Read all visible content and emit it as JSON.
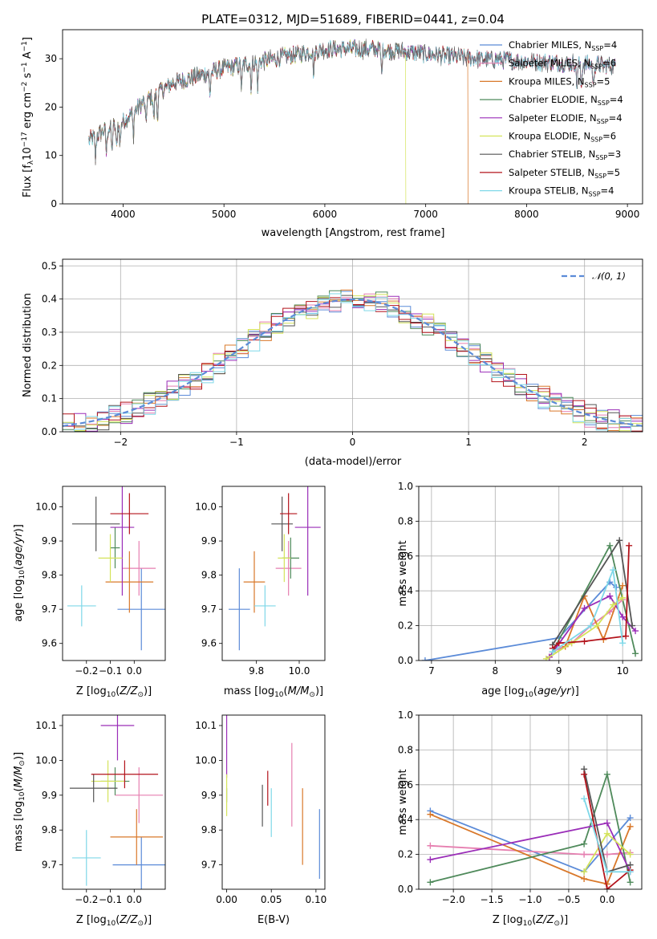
{
  "figure": {
    "title": "PLATE=0312, MJD=51689, FIBERID=0441, z=0.04",
    "models": [
      {
        "name": "Chabrier MILES",
        "nssp": "4",
        "color": "#5b8bd8"
      },
      {
        "name": "Salpeter MILES",
        "nssp": "6",
        "color": "#e67fb0"
      },
      {
        "name": "Kroupa MILES",
        "nssp": "5",
        "color": "#d9782a"
      },
      {
        "name": "Chabrier ELODIE",
        "nssp": "4",
        "color": "#4f8a5b"
      },
      {
        "name": "Salpeter ELODIE",
        "nssp": "4",
        "color": "#9a2db8"
      },
      {
        "name": "Kroupa ELODIE",
        "nssp": "6",
        "color": "#d4e35a"
      },
      {
        "name": "Chabrier STELIB",
        "nssp": "3",
        "color": "#555555"
      },
      {
        "name": "Salpeter STELIB",
        "nssp": "5",
        "color": "#b3131b"
      },
      {
        "name": "Kroupa STELIB",
        "nssp": "4",
        "color": "#7fd8e8"
      }
    ]
  },
  "chart_data": [
    {
      "id": "spectrum",
      "type": "line",
      "title": "PLATE=0312, MJD=51689, FIBERID=0441, z=0.04",
      "xlabel": "wavelength [Angstrom, rest frame]",
      "ylabel_main": "Flux [f",
      "ylabel_parts": {
        "lambda": "λ",
        "scale": "10",
        "scale_exp": "−17",
        "unit1": " erg cm",
        "exp1": "−2",
        "unit2": " s",
        "exp2": "−1",
        "unit3": " A",
        "exp3": "−1",
        "close": "]"
      },
      "xlim": [
        3400,
        9150
      ],
      "ylim": [
        0,
        36
      ],
      "xticks": [
        4000,
        5000,
        6000,
        7000,
        8000,
        9000
      ],
      "yticks": [
        0,
        10,
        20,
        30
      ],
      "continuum": {
        "x": [
          3650,
          3800,
          4000,
          4200,
          4500,
          5000,
          5500,
          6000,
          6500,
          7000,
          7500,
          8000,
          8500,
          8900
        ],
        "y": [
          13,
          15,
          17,
          21,
          25,
          28,
          30,
          32,
          32,
          31,
          30,
          29.5,
          29,
          28.5
        ]
      },
      "model_dropouts": [
        {
          "model": "Kroupa ELODIE",
          "x": 6800
        },
        {
          "model": "Kroupa MILES",
          "x": 7420
        }
      ],
      "legend_position": "upper-right"
    },
    {
      "id": "residual-hist",
      "type": "histogram",
      "xlabel": "(data-model)/error",
      "ylabel": "Normed distribution",
      "xlim": [
        -2.5,
        2.5
      ],
      "ylim": [
        0,
        0.52
      ],
      "xticks": [
        -2,
        -1,
        0,
        1,
        2
      ],
      "yticks": [
        0,
        0.1,
        0.2,
        0.3,
        0.4,
        0.5
      ],
      "bin_width": 0.1,
      "reference_curve": {
        "label": "𝒩(0, 1)",
        "color": "#5b8bd8",
        "mean": 0,
        "sigma": 1
      },
      "grid": true,
      "legend_position": "upper-right"
    },
    {
      "id": "age-vs-z",
      "type": "errorbar",
      "xlabel": "Z [log10(Z/Z⊙)]",
      "ylabel": "age  [log10(age/yr)]",
      "xlim": [
        -0.3,
        0.13
      ],
      "ylim": [
        9.55,
        10.06
      ],
      "xticks": [
        -0.2,
        -0.1,
        0.0
      ],
      "yticks": [
        9.6,
        9.7,
        9.8,
        9.9,
        10.0
      ],
      "points": [
        {
          "model": "Chabrier MILES",
          "x": 0.03,
          "xerr": 0.1,
          "y": 9.7,
          "yerr": 0.12
        },
        {
          "model": "Salpeter MILES",
          "x": 0.02,
          "xerr": 0.07,
          "y": 9.82,
          "yerr": 0.08
        },
        {
          "model": "Kroupa MILES",
          "x": -0.02,
          "xerr": 0.1,
          "y": 9.78,
          "yerr": 0.09
        },
        {
          "model": "Chabrier ELODIE",
          "x": -0.08,
          "xerr": 0.02,
          "y": 9.88,
          "yerr": 0.06
        },
        {
          "model": "Salpeter ELODIE",
          "x": -0.05,
          "xerr": 0.05,
          "y": 9.94,
          "yerr": 0.2
        },
        {
          "model": "Kroupa ELODIE",
          "x": -0.1,
          "xerr": 0.05,
          "y": 9.85,
          "yerr": 0.07
        },
        {
          "model": "Chabrier STELIB",
          "x": -0.16,
          "xerr": 0.1,
          "y": 9.95,
          "yerr": 0.08
        },
        {
          "model": "Salpeter STELIB",
          "x": -0.02,
          "xerr": 0.08,
          "y": 9.98,
          "yerr": 0.06
        },
        {
          "model": "Kroupa STELIB",
          "x": -0.22,
          "xerr": 0.06,
          "y": 9.71,
          "yerr": 0.06
        }
      ]
    },
    {
      "id": "age-vs-mass",
      "type": "errorbar",
      "xlabel": "mass [log10(M/M⊙)]",
      "xlim": [
        9.64,
        10.12
      ],
      "ylim": [
        9.55,
        10.06
      ],
      "xticks": [
        9.8,
        10.0
      ],
      "yticks": [
        9.6,
        9.7,
        9.8,
        9.9,
        10.0
      ],
      "points": [
        {
          "model": "Chabrier MILES",
          "x": 9.72,
          "xerr": 0.05,
          "y": 9.7,
          "yerr": 0.12
        },
        {
          "model": "Salpeter MILES",
          "x": 9.95,
          "xerr": 0.06,
          "y": 9.82,
          "yerr": 0.08
        },
        {
          "model": "Kroupa MILES",
          "x": 9.79,
          "xerr": 0.05,
          "y": 9.78,
          "yerr": 0.09
        },
        {
          "model": "Chabrier ELODIE",
          "x": 9.96,
          "xerr": 0.04,
          "y": 9.85,
          "yerr": 0.06
        },
        {
          "model": "Salpeter ELODIE",
          "x": 10.04,
          "xerr": 0.06,
          "y": 9.94,
          "yerr": 0.2
        },
        {
          "model": "Kroupa ELODIE",
          "x": 9.93,
          "xerr": 0.03,
          "y": 9.85,
          "yerr": 0.07
        },
        {
          "model": "Chabrier STELIB",
          "x": 9.92,
          "xerr": 0.05,
          "y": 9.95,
          "yerr": 0.08
        },
        {
          "model": "Salpeter STELIB",
          "x": 9.95,
          "xerr": 0.04,
          "y": 9.98,
          "yerr": 0.06
        },
        {
          "model": "Kroupa STELIB",
          "x": 9.84,
          "xerr": 0.05,
          "y": 9.71,
          "yerr": 0.06
        }
      ]
    },
    {
      "id": "mass-weight-vs-age",
      "type": "line",
      "xlabel": "age  [log10(age/yr)]",
      "ylabel": "mass weight",
      "xlim": [
        6.8,
        10.3
      ],
      "ylim": [
        0,
        1
      ],
      "xticks": [
        7,
        8,
        9,
        10
      ],
      "yticks": [
        0.0,
        0.2,
        0.4,
        0.6,
        0.8,
        1.0
      ],
      "series": [
        {
          "model": "Chabrier MILES",
          "x": [
            6.9,
            9.0,
            9.8,
            9.9
          ],
          "y": [
            0.0,
            0.13,
            0.45,
            0.42
          ]
        },
        {
          "model": "Salpeter MILES",
          "x": [
            8.9,
            9.2,
            9.5,
            9.8,
            10.0
          ],
          "y": [
            0.05,
            0.1,
            0.2,
            0.28,
            0.35
          ]
        },
        {
          "model": "Kroupa MILES",
          "x": [
            8.85,
            9.1,
            9.4,
            9.7,
            10.0
          ],
          "y": [
            0.02,
            0.08,
            0.37,
            0.12,
            0.43
          ]
        },
        {
          "model": "Chabrier ELODIE",
          "x": [
            8.9,
            9.8,
            10.2
          ],
          "y": [
            0.05,
            0.66,
            0.04
          ]
        },
        {
          "model": "Salpeter ELODIE",
          "x": [
            8.85,
            9.4,
            9.8,
            10.0,
            10.2
          ],
          "y": [
            0.02,
            0.3,
            0.37,
            0.25,
            0.17
          ]
        },
        {
          "model": "Kroupa ELODIE",
          "x": [
            8.8,
            9.2,
            9.6,
            9.85,
            10.0
          ],
          "y": [
            0.01,
            0.1,
            0.2,
            0.32,
            0.36
          ]
        },
        {
          "model": "Chabrier STELIB",
          "x": [
            8.9,
            9.95,
            10.15
          ],
          "y": [
            0.09,
            0.69,
            0.2
          ]
        },
        {
          "model": "Salpeter STELIB",
          "x": [
            8.9,
            9.0,
            9.4,
            10.05,
            10.1
          ],
          "y": [
            0.07,
            0.1,
            0.11,
            0.14,
            0.66
          ]
        },
        {
          "model": "Kroupa STELIB",
          "x": [
            8.9,
            9.5,
            9.85,
            10.0
          ],
          "y": [
            0.05,
            0.2,
            0.52,
            0.1
          ]
        }
      ],
      "grid": true
    },
    {
      "id": "mass-vs-z",
      "type": "errorbar",
      "xlabel": "Z [log10(Z/Z⊙)]",
      "ylabel": "mass [log10(M/M⊙)]",
      "xlim": [
        -0.3,
        0.13
      ],
      "ylim": [
        9.63,
        10.13
      ],
      "xticks": [
        -0.2,
        -0.1,
        0.0
      ],
      "yticks": [
        9.7,
        9.8,
        9.9,
        10.0,
        10.1
      ],
      "points": [
        {
          "model": "Chabrier MILES",
          "x": 0.03,
          "xerr": 0.12,
          "y": 9.7,
          "yerr": 0.08
        },
        {
          "model": "Salpeter MILES",
          "x": 0.02,
          "xerr": 0.1,
          "y": 9.9,
          "yerr": 0.08
        },
        {
          "model": "Kroupa MILES",
          "x": 0.01,
          "xerr": 0.11,
          "y": 9.78,
          "yerr": 0.08
        },
        {
          "model": "Chabrier ELODIE",
          "x": -0.08,
          "xerr": 0.06,
          "y": 9.94,
          "yerr": 0.04
        },
        {
          "model": "Salpeter ELODIE",
          "x": -0.07,
          "xerr": 0.07,
          "y": 10.1,
          "yerr": 0.1
        },
        {
          "model": "Kroupa ELODIE",
          "x": -0.11,
          "xerr": 0.07,
          "y": 9.94,
          "yerr": 0.06
        },
        {
          "model": "Chabrier STELIB",
          "x": -0.17,
          "xerr": 0.1,
          "y": 9.92,
          "yerr": 0.04
        },
        {
          "model": "Salpeter STELIB",
          "x": -0.04,
          "xerr": 0.14,
          "y": 9.96,
          "yerr": 0.04
        },
        {
          "model": "Kroupa STELIB",
          "x": -0.2,
          "xerr": 0.06,
          "y": 9.72,
          "yerr": 0.08
        }
      ]
    },
    {
      "id": "mass-vs-ebv",
      "type": "errorbar",
      "xlabel": "E(B-V)",
      "xlim": [
        -0.005,
        0.11
      ],
      "ylim": [
        9.63,
        10.13
      ],
      "xticks": [
        0.0,
        0.05,
        0.1
      ],
      "yticks": [
        9.7,
        9.8,
        9.9,
        10.0,
        10.1
      ],
      "points": [
        {
          "model": "Chabrier MILES",
          "x": 0.104,
          "yerr": 0.1,
          "y": 9.76
        },
        {
          "model": "Salpeter MILES",
          "x": 0.073,
          "yerr": 0.12,
          "y": 9.93
        },
        {
          "model": "Kroupa MILES",
          "x": 0.085,
          "yerr": 0.11,
          "y": 9.81
        },
        {
          "model": "Chabrier ELODIE",
          "x": 0.0,
          "yerr": 0.02,
          "y": 9.9
        },
        {
          "model": "Salpeter ELODIE",
          "x": 0.0,
          "yerr": 0.1,
          "y": 10.05
        },
        {
          "model": "Kroupa ELODIE",
          "x": 0.0,
          "yerr": 0.06,
          "y": 9.9
        },
        {
          "model": "Chabrier STELIB",
          "x": 0.04,
          "yerr": 0.06,
          "y": 9.87
        },
        {
          "model": "Salpeter STELIB",
          "x": 0.046,
          "yerr": 0.05,
          "y": 9.92
        },
        {
          "model": "Kroupa STELIB",
          "x": 0.05,
          "yerr": 0.07,
          "y": 9.85
        }
      ]
    },
    {
      "id": "mass-weight-vs-z",
      "type": "line",
      "xlabel": "Z [log10(Z/Z⊙)]",
      "ylabel": "mass weight",
      "xlim": [
        -2.45,
        0.45
      ],
      "ylim": [
        0,
        1
      ],
      "xticks": [
        -2.0,
        -1.5,
        -1.0,
        -0.5,
        0.0
      ],
      "yticks": [
        0.0,
        0.2,
        0.4,
        0.6,
        0.8,
        1.0
      ],
      "series": [
        {
          "model": "Chabrier MILES",
          "x": [
            -2.3,
            -0.3,
            0.3
          ],
          "y": [
            0.45,
            0.1,
            0.41
          ]
        },
        {
          "model": "Salpeter MILES",
          "x": [
            -2.3,
            -0.3,
            0.0,
            0.3
          ],
          "y": [
            0.25,
            0.2,
            0.2,
            0.21
          ]
        },
        {
          "model": "Kroupa MILES",
          "x": [
            -2.3,
            -0.3,
            0.0,
            0.3
          ],
          "y": [
            0.43,
            0.06,
            0.03,
            0.36
          ]
        },
        {
          "model": "Chabrier ELODIE",
          "x": [
            -2.3,
            -0.3,
            0.0,
            0.3
          ],
          "y": [
            0.04,
            0.26,
            0.66,
            0.04
          ]
        },
        {
          "model": "Salpeter ELODIE",
          "x": [
            -2.3,
            0.0,
            0.3
          ],
          "y": [
            0.17,
            0.38,
            0.1
          ]
        },
        {
          "model": "Kroupa ELODIE",
          "x": [
            -0.3,
            0.0,
            0.3
          ],
          "y": [
            0.1,
            0.32,
            0.2
          ]
        },
        {
          "model": "Chabrier STELIB",
          "x": [
            -0.3,
            0.0,
            0.3
          ],
          "y": [
            0.69,
            0.1,
            0.14
          ]
        },
        {
          "model": "Salpeter STELIB",
          "x": [
            -0.3,
            0.0,
            0.3
          ],
          "y": [
            0.66,
            0.0,
            0.11
          ]
        },
        {
          "model": "Kroupa STELIB",
          "x": [
            -0.3,
            0.0,
            0.3
          ],
          "y": [
            0.52,
            0.1,
            0.1
          ]
        }
      ],
      "grid": true
    }
  ]
}
